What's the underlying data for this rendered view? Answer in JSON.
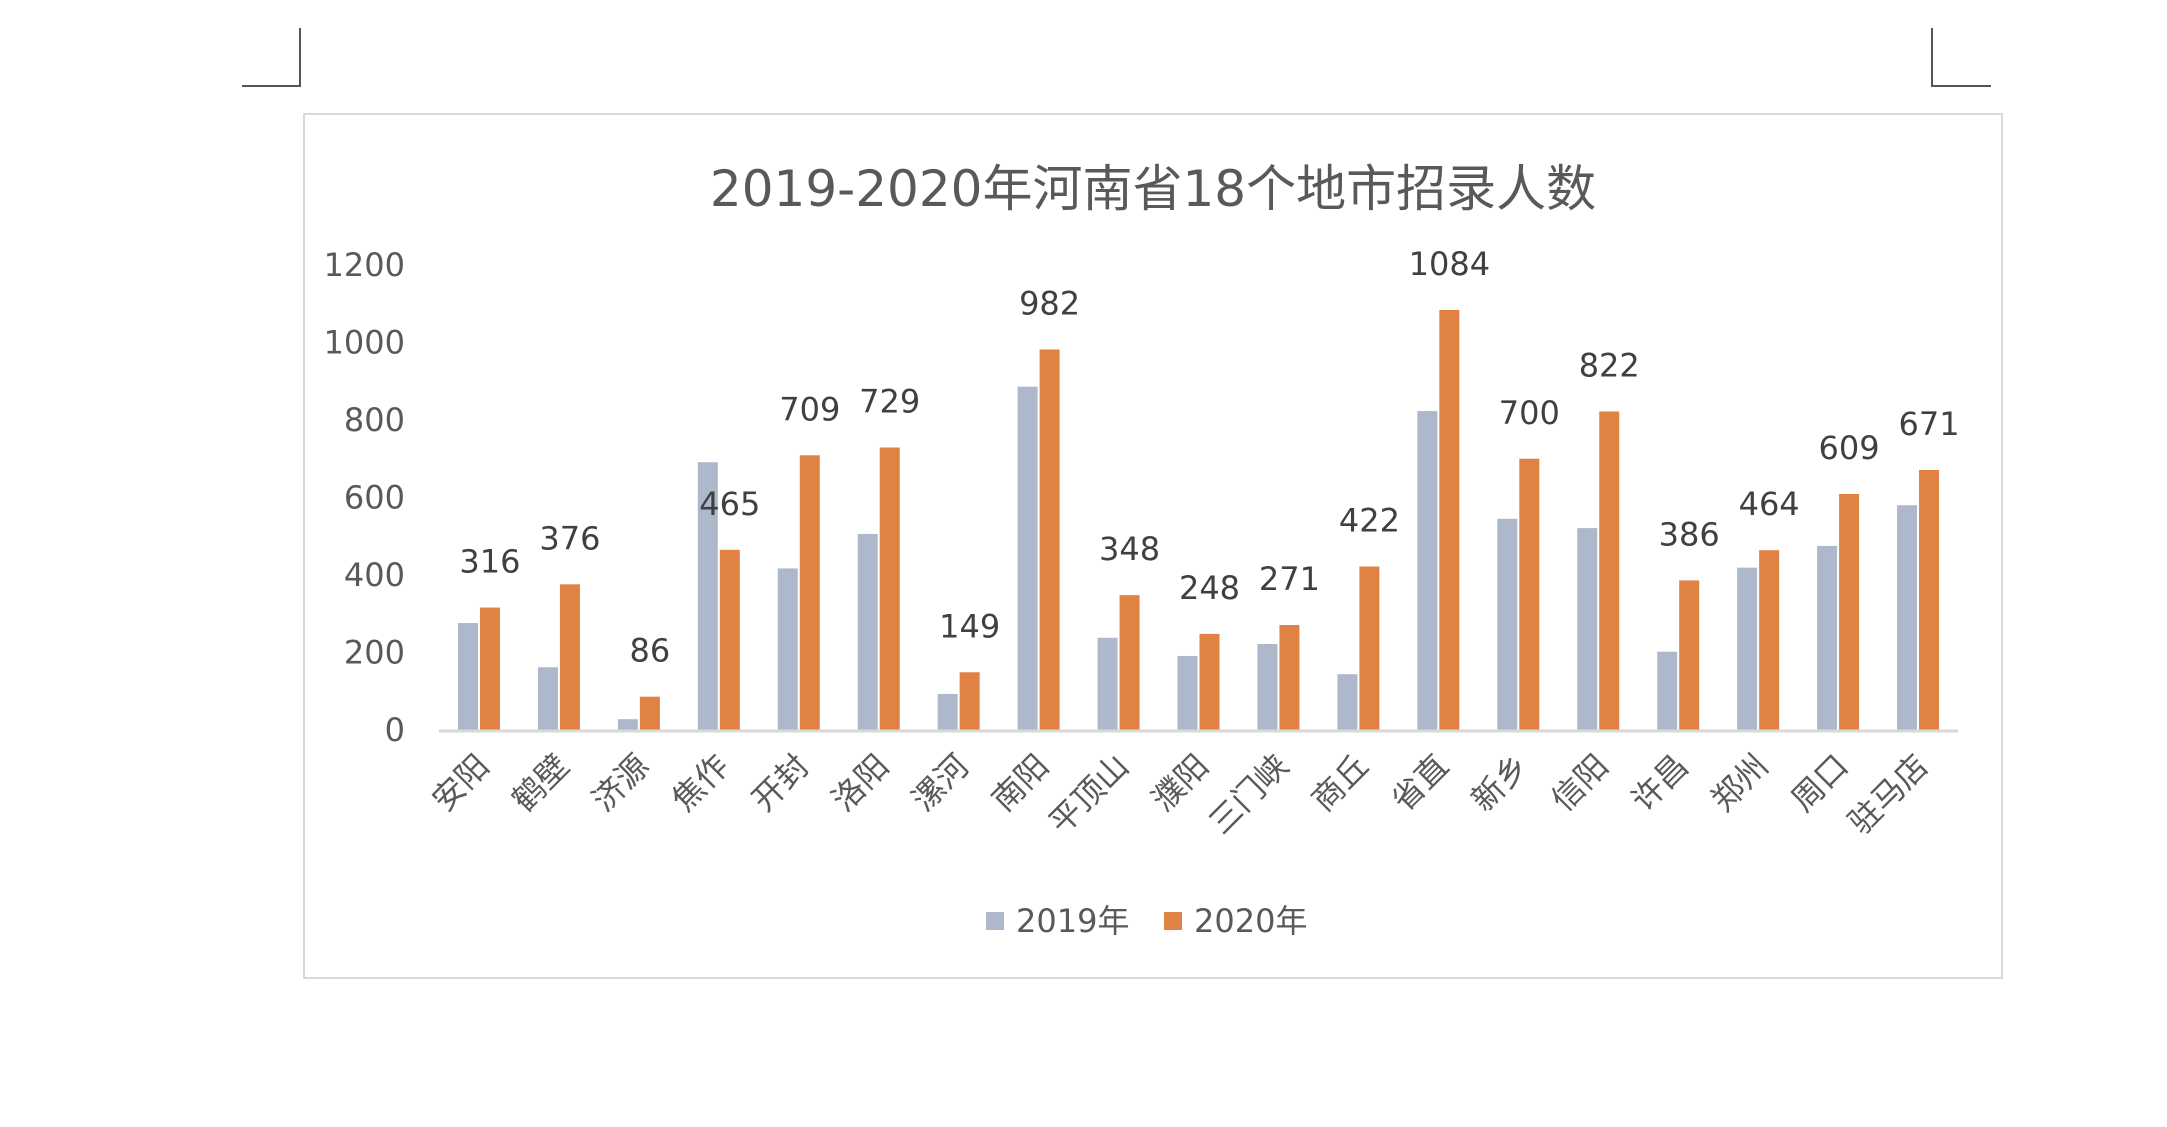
{
  "chart_data": {
    "type": "bar",
    "title": "2019-2020年河南省18个地市招录人数",
    "xlabel": "",
    "ylabel": "",
    "ylim": [
      0,
      1200
    ],
    "yticks": [
      0,
      200,
      400,
      600,
      800,
      1000,
      1200
    ],
    "grid": false,
    "legend_position": "bottom",
    "categories": [
      "安阳",
      "鹤壁",
      "济源",
      "焦作",
      "开封",
      "洛阳",
      "漯河",
      "南阳",
      "平顶山",
      "濮阳",
      "三门峡",
      "商丘",
      "省直",
      "新乡",
      "信阳",
      "许昌",
      "郑州",
      "周口",
      "驻马店"
    ],
    "series": [
      {
        "name": "2019年",
        "color": "#adb9ca",
        "show_labels": false,
        "values": [
          276,
          162,
          28,
          691,
          417,
          506,
          93,
          886,
          238,
          191,
          222,
          144,
          823,
          545,
          521,
          202,
          419,
          475,
          580
        ]
      },
      {
        "name": "2020年",
        "color": "#e08244",
        "show_labels": true,
        "values": [
          316,
          376,
          86,
          465,
          709,
          729,
          149,
          982,
          348,
          248,
          271,
          422,
          1084,
          700,
          822,
          386,
          464,
          609,
          671
        ]
      }
    ]
  }
}
